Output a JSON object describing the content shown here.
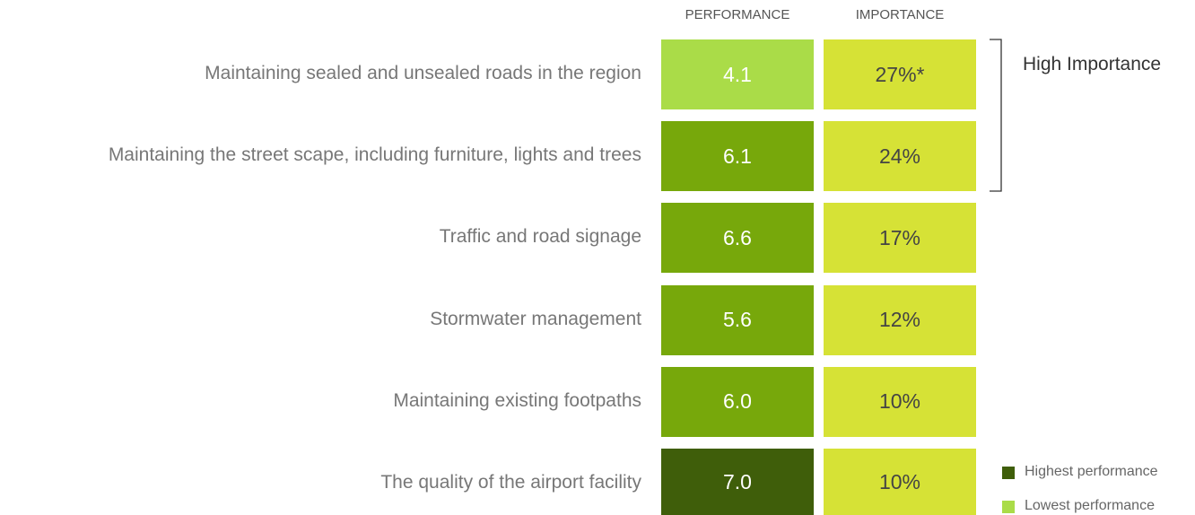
{
  "headers": {
    "performance": "PERFORMANCE",
    "importance": "IMPORTANCE"
  },
  "rows": [
    {
      "label": "Maintaining sealed and unsealed roads in the region",
      "performance": "4.1",
      "importance": "27%*",
      "performance_color": "#aadc48"
    },
    {
      "label": "Maintaining the street scape, including furniture, lights and trees",
      "performance": "6.1",
      "importance": "24%",
      "performance_color": "#77a80b"
    },
    {
      "label": "Traffic and road signage",
      "performance": "6.6",
      "importance": "17%",
      "performance_color": "#77a80b"
    },
    {
      "label": "Stormwater management",
      "performance": "5.6",
      "importance": "12%",
      "performance_color": "#77a80b"
    },
    {
      "label": "Maintaining existing footpaths",
      "performance": "6.0",
      "importance": "10%",
      "performance_color": "#77a80b"
    },
    {
      "label": "The quality of the airport facility",
      "performance": "7.0",
      "importance": "10%",
      "performance_color": "#3f5e0a"
    }
  ],
  "importance_color": "#d6e236",
  "bracket_label": "High Importance",
  "legend": [
    {
      "label": "Highest performance",
      "color": "#3f5e0a"
    },
    {
      "label": "Lowest performance",
      "color": "#aadc48"
    }
  ]
}
